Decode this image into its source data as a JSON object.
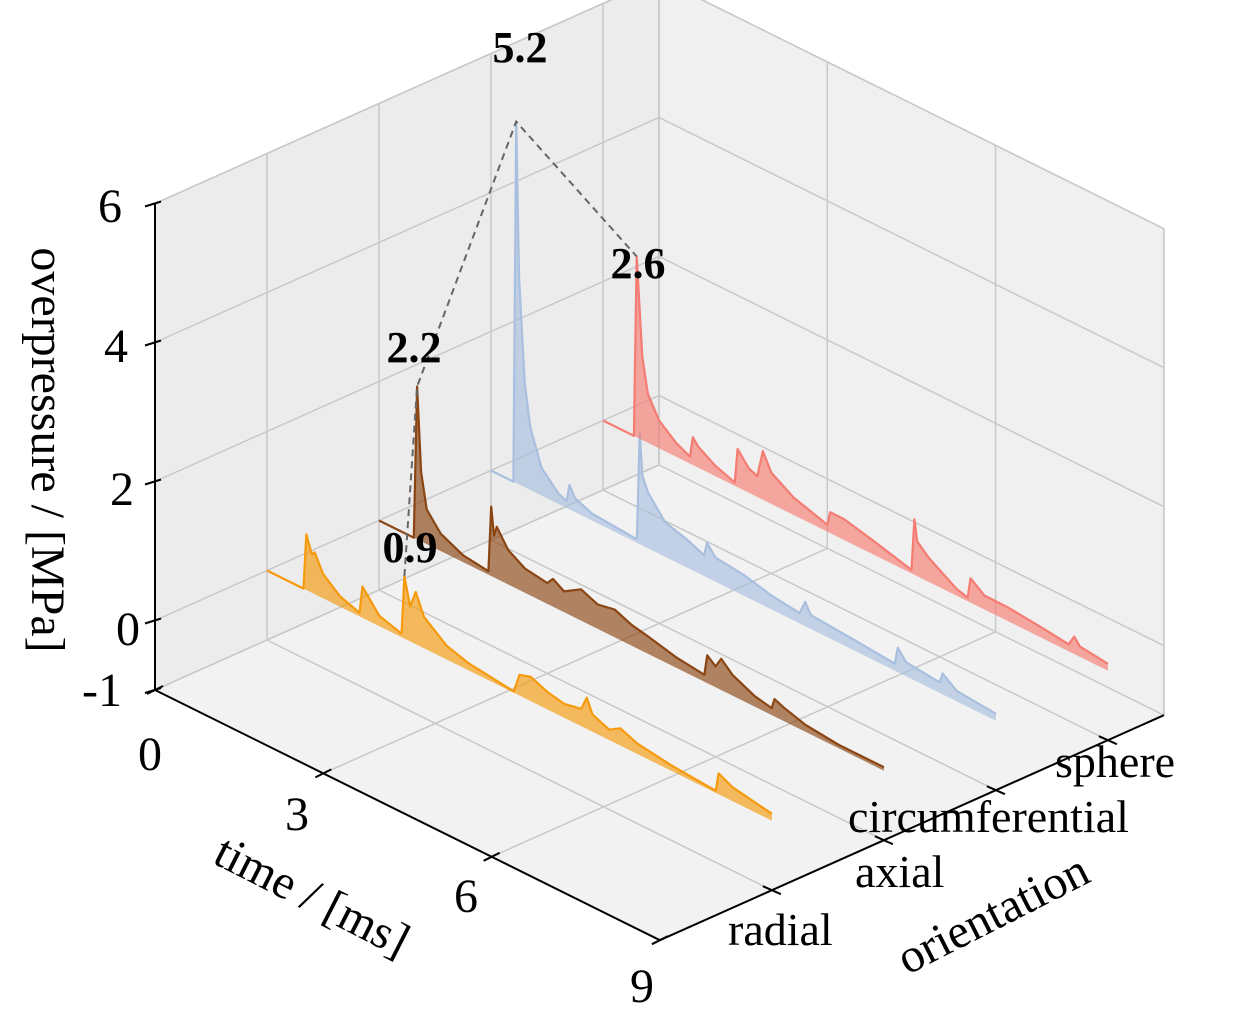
{
  "chart_data": {
    "type": "line",
    "subtype": "3d-waterfall-filled",
    "title": "",
    "xlabel": "time / [ms]",
    "ylabel": "orientation",
    "zlabel": "overpressure / [MPa]",
    "xlim": [
      0,
      9
    ],
    "zlim": [
      -1,
      6
    ],
    "x_ticks": [
      "0",
      "3",
      "6",
      "9"
    ],
    "y_ticks": [
      "radial",
      "axial",
      "circumferential",
      "sphere"
    ],
    "z_ticks": [
      "-1",
      "0",
      "2",
      "4",
      "6"
    ],
    "grid": true,
    "peak_labels": [
      "0.9",
      "2.2",
      "5.2",
      "2.6"
    ],
    "series": [
      {
        "name": "radial",
        "color": "#f59a0c",
        "peak": 0.9,
        "points": [
          [
            0,
            0
          ],
          [
            0.65,
            0
          ],
          [
            0.7,
            0.8
          ],
          [
            0.8,
            0.55
          ],
          [
            0.85,
            0.6
          ],
          [
            1.0,
            0.35
          ],
          [
            1.3,
            0.15
          ],
          [
            1.65,
            0.05
          ],
          [
            1.7,
            0.45
          ],
          [
            1.8,
            0.35
          ],
          [
            2.0,
            0.15
          ],
          [
            2.4,
            0.05
          ],
          [
            2.45,
            0.9
          ],
          [
            2.55,
            0.5
          ],
          [
            2.65,
            0.75
          ],
          [
            2.8,
            0.45
          ],
          [
            3.2,
            0.2
          ],
          [
            3.6,
            0.1
          ],
          [
            4.4,
            0.02
          ],
          [
            4.5,
            0.3
          ],
          [
            4.7,
            0.35
          ],
          [
            5.0,
            0.25
          ],
          [
            5.3,
            0.2
          ],
          [
            5.6,
            0.25
          ],
          [
            5.7,
            0.45
          ],
          [
            5.8,
            0.25
          ],
          [
            6.1,
            0.15
          ],
          [
            6.3,
            0.25
          ],
          [
            6.6,
            0.15
          ],
          [
            7.2,
            0.08
          ],
          [
            8.0,
            0.03
          ],
          [
            8.05,
            0.3
          ],
          [
            8.3,
            0.2
          ],
          [
            9,
            0.1
          ]
        ]
      },
      {
        "name": "axial",
        "color": "#8b4513",
        "peak": 2.2,
        "points": [
          [
            0,
            0
          ],
          [
            0.62,
            0
          ],
          [
            0.68,
            2.2
          ],
          [
            0.75,
            1.0
          ],
          [
            0.85,
            0.5
          ],
          [
            1.1,
            0.25
          ],
          [
            1.5,
            0.1
          ],
          [
            1.95,
            0.05
          ],
          [
            2.0,
            1.0
          ],
          [
            2.05,
            0.6
          ],
          [
            2.1,
            0.75
          ],
          [
            2.3,
            0.5
          ],
          [
            2.6,
            0.35
          ],
          [
            3.0,
            0.3
          ],
          [
            3.1,
            0.4
          ],
          [
            3.3,
            0.3
          ],
          [
            3.6,
            0.45
          ],
          [
            3.9,
            0.35
          ],
          [
            4.2,
            0.4
          ],
          [
            4.5,
            0.3
          ],
          [
            4.8,
            0.25
          ],
          [
            5.3,
            0.15
          ],
          [
            5.8,
            0.1
          ],
          [
            5.85,
            0.4
          ],
          [
            6.0,
            0.3
          ],
          [
            6.1,
            0.45
          ],
          [
            6.3,
            0.3
          ],
          [
            6.7,
            0.15
          ],
          [
            7.0,
            0.1
          ],
          [
            7.05,
            0.25
          ],
          [
            7.2,
            0.2
          ],
          [
            7.6,
            0.1
          ],
          [
            8.2,
            0.05
          ],
          [
            9,
            0.05
          ]
        ]
      },
      {
        "name": "circumferential",
        "color": "#a9bfdf",
        "peak": 5.2,
        "points": [
          [
            0,
            0
          ],
          [
            0.4,
            0
          ],
          [
            0.45,
            5.2
          ],
          [
            0.5,
            3.0
          ],
          [
            0.6,
            1.5
          ],
          [
            0.7,
            0.9
          ],
          [
            0.9,
            0.4
          ],
          [
            1.2,
            0.15
          ],
          [
            1.35,
            0.1
          ],
          [
            1.4,
            0.35
          ],
          [
            1.5,
            0.2
          ],
          [
            1.8,
            0.1
          ],
          [
            2.6,
            0.05
          ],
          [
            2.65,
            1.6
          ],
          [
            2.7,
            1.0
          ],
          [
            2.8,
            0.8
          ],
          [
            3.1,
            0.5
          ],
          [
            3.5,
            0.4
          ],
          [
            3.8,
            0.3
          ],
          [
            3.85,
            0.5
          ],
          [
            4.0,
            0.35
          ],
          [
            4.5,
            0.3
          ],
          [
            5.0,
            0.2
          ],
          [
            5.5,
            0.15
          ],
          [
            5.6,
            0.35
          ],
          [
            5.7,
            0.2
          ],
          [
            6.5,
            0.15
          ],
          [
            7.2,
            0.1
          ],
          [
            7.25,
            0.35
          ],
          [
            7.4,
            0.2
          ],
          [
            8.0,
            0.15
          ],
          [
            8.05,
            0.3
          ],
          [
            8.3,
            0.15
          ],
          [
            9,
            0.1
          ]
        ]
      },
      {
        "name": "sphere",
        "color": "#f47c72",
        "peak": 2.6,
        "points": [
          [
            0,
            0
          ],
          [
            0.55,
            0
          ],
          [
            0.6,
            2.6
          ],
          [
            0.7,
            1.2
          ],
          [
            0.8,
            0.7
          ],
          [
            1.0,
            0.4
          ],
          [
            1.3,
            0.2
          ],
          [
            1.55,
            0.1
          ],
          [
            1.6,
            0.4
          ],
          [
            1.7,
            0.3
          ],
          [
            2.0,
            0.15
          ],
          [
            2.35,
            0.05
          ],
          [
            2.4,
            0.55
          ],
          [
            2.6,
            0.35
          ],
          [
            2.75,
            0.3
          ],
          [
            2.85,
            0.7
          ],
          [
            3.0,
            0.45
          ],
          [
            3.4,
            0.25
          ],
          [
            4.0,
            0.1
          ],
          [
            4.05,
            0.3
          ],
          [
            4.3,
            0.3
          ],
          [
            4.8,
            0.2
          ],
          [
            5.5,
            0.05
          ],
          [
            5.55,
            0.8
          ],
          [
            5.6,
            0.5
          ],
          [
            5.8,
            0.35
          ],
          [
            6.3,
            0.1
          ],
          [
            6.5,
            0.05
          ],
          [
            6.55,
            0.35
          ],
          [
            6.8,
            0.2
          ],
          [
            7.2,
            0.2
          ],
          [
            7.8,
            0.15
          ],
          [
            8.3,
            0.1
          ],
          [
            8.4,
            0.25
          ],
          [
            8.5,
            0.15
          ],
          [
            9,
            0.1
          ]
        ]
      }
    ]
  }
}
